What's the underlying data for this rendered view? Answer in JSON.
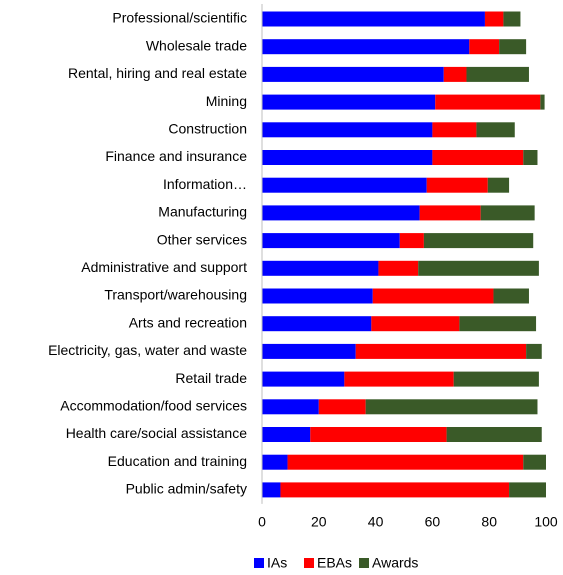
{
  "chart_data": {
    "type": "stacked_barh",
    "categories": [
      "Professional/scientific",
      "Wholesale trade",
      "Rental, hiring and real estate",
      "Mining",
      "Construction",
      "Finance and insurance",
      "Information…",
      "Manufacturing",
      "Other services",
      "Administrative and support",
      "Transport/warehousing",
      "Arts and recreation",
      "Electricity, gas, water and waste",
      "Retail trade",
      "Accommodation/food services",
      "Health care/social assistance",
      "Education and training",
      "Public admin/safety"
    ],
    "series": [
      {
        "name": "IAs",
        "color": "#0000ff",
        "values": [
          78.5,
          73,
          64,
          61,
          60,
          60,
          58,
          55.5,
          48.5,
          41,
          39,
          38.5,
          33,
          29,
          20,
          17,
          9,
          6.5
        ]
      },
      {
        "name": "EBAs",
        "color": "#ff0000",
        "values": [
          6.5,
          10.5,
          8,
          37,
          15.5,
          32,
          21.5,
          21.5,
          8.5,
          14,
          42.5,
          31,
          60,
          38.5,
          16.5,
          48,
          83,
          80.5
        ]
      },
      {
        "name": "Awards",
        "color": "#3a5a28",
        "values": [
          6,
          9.5,
          22,
          1.5,
          13.5,
          5,
          7.5,
          19,
          38.5,
          42.5,
          12.5,
          27,
          5.5,
          30,
          60.5,
          33.5,
          8,
          13
        ]
      }
    ],
    "xlim": [
      0,
      100
    ],
    "xticks": [
      0,
      20,
      40,
      60,
      80,
      100
    ],
    "legend": "bottom"
  }
}
